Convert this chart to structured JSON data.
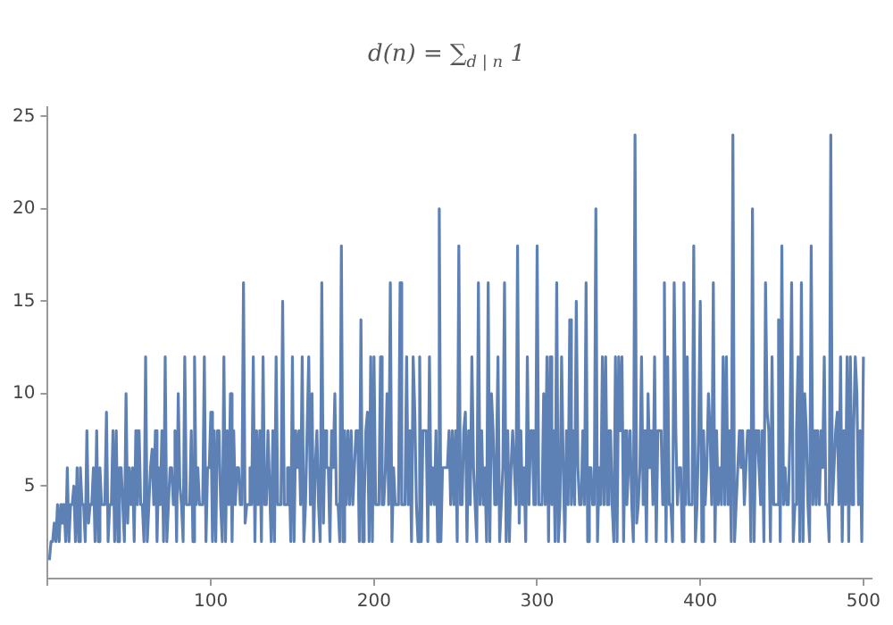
{
  "chart_data": {
    "type": "line",
    "title": "d(n) = ∑$_{d | n}$ 1",
    "color": "#5e81b5",
    "marker": "none",
    "line_style": "solid",
    "x": [
      1,
      2,
      3,
      4,
      5,
      6,
      7,
      8,
      9,
      10,
      11,
      12,
      13,
      14,
      15,
      16,
      17,
      18,
      19,
      20,
      21,
      22,
      23,
      24,
      25,
      26,
      27,
      28,
      29,
      30,
      31,
      32,
      33,
      34,
      35,
      36,
      37,
      38,
      39,
      40,
      41,
      42,
      43,
      44,
      45,
      46,
      47,
      48,
      49,
      50,
      51,
      52,
      53,
      54,
      55,
      56,
      57,
      58,
      59,
      60,
      61,
      62,
      63,
      64,
      65,
      66,
      67,
      68,
      69,
      70,
      71,
      72,
      73,
      74,
      75,
      76,
      77,
      78,
      79,
      80,
      81,
      82,
      83,
      84,
      85,
      86,
      87,
      88,
      89,
      90,
      91,
      92,
      93,
      94,
      95,
      96,
      97,
      98,
      99,
      100,
      101,
      102,
      103,
      104,
      105,
      106,
      107,
      108,
      109,
      110,
      111,
      112,
      113,
      114,
      115,
      116,
      117,
      118,
      119,
      120,
      121,
      122,
      123,
      124,
      125,
      126,
      127,
      128,
      129,
      130,
      131,
      132,
      133,
      134,
      135,
      136,
      137,
      138,
      139,
      140,
      141,
      142,
      143,
      144,
      145,
      146,
      147,
      148,
      149,
      150,
      151,
      152,
      153,
      154,
      155,
      156,
      157,
      158,
      159,
      160,
      161,
      162,
      163,
      164,
      165,
      166,
      167,
      168,
      169,
      170,
      171,
      172,
      173,
      174,
      175,
      176,
      177,
      178,
      179,
      180,
      181,
      182,
      183,
      184,
      185,
      186,
      187,
      188,
      189,
      190,
      191,
      192,
      193,
      194,
      195,
      196,
      197,
      198,
      199,
      200,
      201,
      202,
      203,
      204,
      205,
      206,
      207,
      208,
      209,
      210,
      211,
      212,
      213,
      214,
      215,
      216,
      217,
      218,
      219,
      220,
      221,
      222,
      223,
      224,
      225,
      226,
      227,
      228,
      229,
      230,
      231,
      232,
      233,
      234,
      235,
      236,
      237,
      238,
      239,
      240,
      241,
      242,
      243,
      244,
      245,
      246,
      247,
      248,
      249,
      250,
      251,
      252,
      253,
      254,
      255,
      256,
      257,
      258,
      259,
      260,
      261,
      262,
      263,
      264,
      265,
      266,
      267,
      268,
      269,
      270,
      271,
      272,
      273,
      274,
      275,
      276,
      277,
      278,
      279,
      280,
      281,
      282,
      283,
      284,
      285,
      286,
      287,
      288,
      289,
      290,
      291,
      292,
      293,
      294,
      295,
      296,
      297,
      298,
      299,
      300,
      301,
      302,
      303,
      304,
      305,
      306,
      307,
      308,
      309,
      310,
      311,
      312,
      313,
      314,
      315,
      316,
      317,
      318,
      319,
      320,
      321,
      322,
      323,
      324,
      325,
      326,
      327,
      328,
      329,
      330,
      331,
      332,
      333,
      334,
      335,
      336,
      337,
      338,
      339,
      340,
      341,
      342,
      343,
      344,
      345,
      346,
      347,
      348,
      349,
      350,
      351,
      352,
      353,
      354,
      355,
      356,
      357,
      358,
      359,
      360,
      361,
      362,
      363,
      364,
      365,
      366,
      367,
      368,
      369,
      370,
      371,
      372,
      373,
      374,
      375,
      376,
      377,
      378,
      379,
      380,
      381,
      382,
      383,
      384,
      385,
      386,
      387,
      388,
      389,
      390,
      391,
      392,
      393,
      394,
      395,
      396,
      397,
      398,
      399,
      400,
      401,
      402,
      403,
      404,
      405,
      406,
      407,
      408,
      409,
      410,
      411,
      412,
      413,
      414,
      415,
      416,
      417,
      418,
      419,
      420,
      421,
      422,
      423,
      424,
      425,
      426,
      427,
      428,
      429,
      430,
      431,
      432,
      433,
      434,
      435,
      436,
      437,
      438,
      439,
      440,
      441,
      442,
      443,
      444,
      445,
      446,
      447,
      448,
      449,
      450,
      451,
      452,
      453,
      454,
      455,
      456,
      457,
      458,
      459,
      460,
      461,
      462,
      463,
      464,
      465,
      466,
      467,
      468,
      469,
      470,
      471,
      472,
      473,
      474,
      475,
      476,
      477,
      478,
      479,
      480,
      481,
      482,
      483,
      484,
      485,
      486,
      487,
      488,
      489,
      490,
      491,
      492,
      493,
      494,
      495,
      496,
      497,
      498,
      499,
      500
    ],
    "values": [
      1,
      2,
      2,
      3,
      2,
      4,
      2,
      4,
      3,
      4,
      2,
      6,
      2,
      4,
      4,
      5,
      2,
      6,
      2,
      6,
      4,
      4,
      2,
      8,
      3,
      4,
      4,
      6,
      2,
      8,
      2,
      6,
      4,
      4,
      4,
      9,
      2,
      4,
      4,
      8,
      2,
      8,
      2,
      6,
      6,
      4,
      2,
      10,
      3,
      6,
      4,
      6,
      2,
      8,
      4,
      8,
      4,
      4,
      2,
      12,
      2,
      4,
      6,
      7,
      4,
      8,
      2,
      6,
      4,
      8,
      2,
      12,
      2,
      4,
      6,
      6,
      4,
      8,
      2,
      10,
      5,
      4,
      2,
      12,
      4,
      4,
      4,
      8,
      2,
      12,
      4,
      6,
      4,
      4,
      4,
      12,
      2,
      6,
      6,
      9,
      2,
      8,
      2,
      8,
      8,
      4,
      2,
      12,
      2,
      8,
      4,
      10,
      2,
      8,
      4,
      6,
      6,
      4,
      4,
      16,
      3,
      4,
      4,
      6,
      4,
      12,
      2,
      8,
      4,
      8,
      2,
      12,
      4,
      4,
      8,
      8,
      2,
      8,
      2,
      12,
      4,
      4,
      4,
      15,
      4,
      4,
      6,
      6,
      2,
      12,
      2,
      8,
      6,
      8,
      4,
      12,
      2,
      4,
      4,
      12,
      4,
      10,
      2,
      6,
      8,
      4,
      2,
      16,
      3,
      8,
      6,
      6,
      2,
      8,
      6,
      10,
      4,
      4,
      2,
      18,
      2,
      8,
      4,
      8,
      4,
      8,
      4,
      6,
      8,
      8,
      2,
      14,
      2,
      4,
      8,
      9,
      2,
      12,
      2,
      12,
      4,
      4,
      4,
      12,
      4,
      4,
      6,
      10,
      4,
      16,
      2,
      6,
      4,
      4,
      4,
      16,
      4,
      4,
      4,
      12,
      4,
      8,
      2,
      12,
      9,
      4,
      2,
      12,
      2,
      8,
      8,
      8,
      2,
      12,
      4,
      6,
      4,
      8,
      2,
      20,
      2,
      6,
      6,
      6,
      6,
      8,
      4,
      8,
      4,
      8,
      2,
      18,
      4,
      4,
      8,
      9,
      2,
      8,
      4,
      12,
      6,
      4,
      2,
      16,
      4,
      8,
      4,
      6,
      2,
      16,
      2,
      10,
      8,
      4,
      6,
      12,
      2,
      4,
      6,
      16,
      2,
      8,
      2,
      6,
      8,
      8,
      4,
      18,
      3,
      8,
      4,
      6,
      2,
      12,
      4,
      8,
      8,
      4,
      4,
      18,
      4,
      4,
      4,
      10,
      4,
      12,
      2,
      12,
      4,
      8,
      2,
      16,
      2,
      4,
      12,
      6,
      2,
      8,
      4,
      14,
      4,
      8,
      4,
      15,
      6,
      4,
      4,
      8,
      4,
      16,
      2,
      6,
      6,
      4,
      4,
      20,
      2,
      6,
      4,
      12,
      4,
      12,
      4,
      8,
      8,
      4,
      2,
      12,
      2,
      12,
      8,
      12,
      2,
      8,
      4,
      6,
      8,
      4,
      2,
      24,
      3,
      4,
      6,
      12,
      4,
      8,
      2,
      10,
      6,
      8,
      4,
      12,
      2,
      8,
      8,
      8,
      4,
      16,
      2,
      12,
      4,
      4,
      2,
      16,
      8,
      4,
      6,
      6,
      2,
      16,
      4,
      12,
      4,
      4,
      4,
      18,
      2,
      4,
      8,
      15,
      2,
      8,
      4,
      6,
      10,
      8,
      4,
      16,
      2,
      8,
      4,
      6,
      4,
      12,
      4,
      12,
      4,
      8,
      2,
      24,
      2,
      4,
      6,
      8,
      6,
      8,
      4,
      6,
      8,
      8,
      2,
      20,
      2,
      8,
      8,
      6,
      4,
      8,
      2,
      16,
      9,
      8,
      2,
      12,
      4,
      4,
      4,
      14,
      2,
      18,
      4,
      6,
      4,
      4,
      8,
      16,
      2,
      4,
      8,
      12,
      2,
      16,
      2,
      10,
      8,
      4,
      2,
      18,
      4,
      8,
      4,
      8,
      4,
      8,
      6,
      12,
      4,
      4,
      2,
      24,
      4,
      4,
      8,
      9,
      4,
      12,
      2,
      8,
      4,
      12,
      2,
      12,
      4,
      8,
      12,
      10,
      4,
      8,
      2,
      12
    ],
    "xlim": [
      0,
      505
    ],
    "ylim": [
      0,
      25.5
    ],
    "xticks": [
      {
        "value": 0,
        "label": null
      },
      100,
      200,
      300,
      400,
      500
    ],
    "yticks": [
      5,
      10,
      15,
      20,
      25
    ]
  }
}
